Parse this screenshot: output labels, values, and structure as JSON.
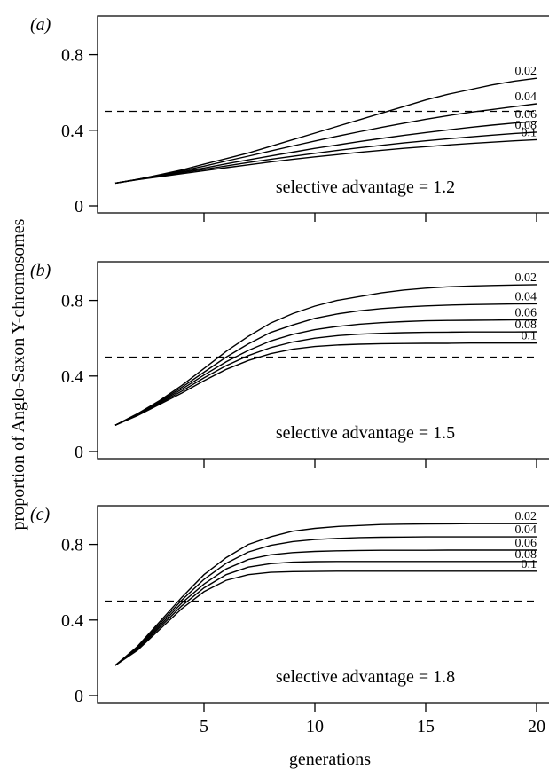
{
  "figure": {
    "ylabel": "proportion of Anglo-Saxon Y-chromosomes",
    "xlabel": "generations"
  },
  "chart_data": [
    {
      "type": "line",
      "panel_label": "(a)",
      "annotation": "selective advantage = 1.2",
      "x": [
        1,
        2,
        3,
        4,
        5,
        6,
        7,
        8,
        9,
        10,
        11,
        12,
        13,
        14,
        15,
        16,
        17,
        18,
        19,
        20
      ],
      "xlim": [
        1,
        20
      ],
      "ylim": [
        0,
        1
      ],
      "x_ticks": [
        5,
        10,
        15,
        20
      ],
      "x_tick_labels": [],
      "y_ticks": [
        0,
        0.4,
        0.8
      ],
      "y_tick_labels": [
        "0",
        "0.4",
        "0.8"
      ],
      "reference_line": {
        "y": 0.5,
        "style": "dashed"
      },
      "series": [
        {
          "name": "0.02",
          "values": [
            0.12,
            0.14,
            0.165,
            0.19,
            0.22,
            0.25,
            0.28,
            0.315,
            0.35,
            0.385,
            0.42,
            0.455,
            0.49,
            0.525,
            0.56,
            0.59,
            0.615,
            0.64,
            0.66,
            0.675
          ]
        },
        {
          "name": "0.04",
          "values": [
            0.12,
            0.14,
            0.162,
            0.185,
            0.21,
            0.237,
            0.263,
            0.29,
            0.317,
            0.343,
            0.368,
            0.392,
            0.415,
            0.437,
            0.458,
            0.477,
            0.495,
            0.51,
            0.525,
            0.54
          ]
        },
        {
          "name": "0.06",
          "values": [
            0.12,
            0.14,
            0.16,
            0.18,
            0.2,
            0.222,
            0.243,
            0.264,
            0.284,
            0.304,
            0.322,
            0.34,
            0.357,
            0.373,
            0.388,
            0.402,
            0.415,
            0.427,
            0.438,
            0.447
          ]
        },
        {
          "name": "0.08",
          "values": [
            0.12,
            0.139,
            0.157,
            0.175,
            0.193,
            0.211,
            0.229,
            0.246,
            0.262,
            0.278,
            0.293,
            0.307,
            0.32,
            0.333,
            0.344,
            0.355,
            0.365,
            0.374,
            0.383,
            0.39
          ]
        },
        {
          "name": "0.1",
          "values": [
            0.12,
            0.138,
            0.154,
            0.17,
            0.186,
            0.202,
            0.217,
            0.232,
            0.246,
            0.259,
            0.271,
            0.283,
            0.294,
            0.304,
            0.313,
            0.322,
            0.33,
            0.337,
            0.344,
            0.35
          ]
        }
      ]
    },
    {
      "type": "line",
      "panel_label": "(b)",
      "annotation": "selective advantage = 1.5",
      "x": [
        1,
        2,
        3,
        4,
        5,
        6,
        7,
        8,
        9,
        10,
        11,
        12,
        13,
        14,
        15,
        16,
        17,
        18,
        19,
        20
      ],
      "xlim": [
        1,
        20
      ],
      "ylim": [
        0,
        1
      ],
      "x_ticks": [
        5,
        10,
        15,
        20
      ],
      "x_tick_labels": [],
      "y_ticks": [
        0,
        0.4,
        0.8
      ],
      "y_tick_labels": [
        "0",
        "0.4",
        "0.8"
      ],
      "reference_line": {
        "y": 0.5,
        "style": "dashed"
      },
      "series": [
        {
          "name": "0.02",
          "values": [
            0.14,
            0.2,
            0.27,
            0.35,
            0.44,
            0.53,
            0.61,
            0.68,
            0.73,
            0.77,
            0.8,
            0.82,
            0.84,
            0.855,
            0.865,
            0.872,
            0.876,
            0.879,
            0.881,
            0.883
          ]
        },
        {
          "name": "0.04",
          "values": [
            0.14,
            0.2,
            0.265,
            0.34,
            0.42,
            0.5,
            0.57,
            0.63,
            0.67,
            0.705,
            0.728,
            0.745,
            0.757,
            0.765,
            0.771,
            0.775,
            0.778,
            0.78,
            0.781,
            0.782
          ]
        },
        {
          "name": "0.06",
          "values": [
            0.14,
            0.195,
            0.26,
            0.33,
            0.405,
            0.475,
            0.535,
            0.585,
            0.62,
            0.645,
            0.662,
            0.674,
            0.682,
            0.688,
            0.692,
            0.694,
            0.695,
            0.696,
            0.697,
            0.697
          ]
        },
        {
          "name": "0.08",
          "values": [
            0.14,
            0.195,
            0.255,
            0.32,
            0.39,
            0.455,
            0.508,
            0.55,
            0.58,
            0.6,
            0.613,
            0.621,
            0.626,
            0.629,
            0.631,
            0.632,
            0.633,
            0.633,
            0.633,
            0.634
          ]
        },
        {
          "name": "0.1",
          "values": [
            0.14,
            0.19,
            0.25,
            0.31,
            0.375,
            0.435,
            0.482,
            0.518,
            0.542,
            0.556,
            0.564,
            0.568,
            0.571,
            0.572,
            0.573,
            0.573,
            0.574,
            0.574,
            0.574,
            0.574
          ]
        }
      ]
    },
    {
      "type": "line",
      "panel_label": "(c)",
      "annotation": "selective advantage = 1.8",
      "x": [
        1,
        2,
        3,
        4,
        5,
        6,
        7,
        8,
        9,
        10,
        11,
        12,
        13,
        14,
        15,
        16,
        17,
        18,
        19,
        20
      ],
      "xlim": [
        1,
        20
      ],
      "ylim": [
        0,
        1
      ],
      "x_ticks": [
        5,
        10,
        15,
        20
      ],
      "x_tick_labels": [
        "5",
        "10",
        "15",
        "20"
      ],
      "y_ticks": [
        0,
        0.4,
        0.8
      ],
      "y_tick_labels": [
        "0",
        "0.4",
        "0.8"
      ],
      "reference_line": {
        "y": 0.5,
        "style": "dashed"
      },
      "series": [
        {
          "name": "0.02",
          "values": [
            0.16,
            0.26,
            0.39,
            0.52,
            0.64,
            0.73,
            0.8,
            0.84,
            0.87,
            0.885,
            0.895,
            0.9,
            0.905,
            0.907,
            0.908,
            0.909,
            0.91,
            0.91,
            0.91,
            0.91
          ]
        },
        {
          "name": "0.04",
          "values": [
            0.16,
            0.255,
            0.38,
            0.505,
            0.615,
            0.7,
            0.76,
            0.795,
            0.815,
            0.826,
            0.832,
            0.836,
            0.838,
            0.839,
            0.84,
            0.84,
            0.84,
            0.84,
            0.84,
            0.84
          ]
        },
        {
          "name": "0.06",
          "values": [
            0.16,
            0.25,
            0.37,
            0.49,
            0.59,
            0.67,
            0.72,
            0.745,
            0.757,
            0.763,
            0.766,
            0.768,
            0.769,
            0.769,
            0.769,
            0.77,
            0.77,
            0.77,
            0.77,
            0.77
          ]
        },
        {
          "name": "0.08",
          "values": [
            0.16,
            0.245,
            0.36,
            0.475,
            0.57,
            0.64,
            0.68,
            0.698,
            0.706,
            0.709,
            0.71,
            0.71,
            0.71,
            0.71,
            0.71,
            0.71,
            0.71,
            0.71,
            0.71,
            0.71
          ]
        },
        {
          "name": "0.1",
          "values": [
            0.16,
            0.24,
            0.35,
            0.46,
            0.55,
            0.61,
            0.64,
            0.652,
            0.656,
            0.657,
            0.658,
            0.658,
            0.658,
            0.658,
            0.658,
            0.658,
            0.658,
            0.658,
            0.658,
            0.658
          ]
        }
      ]
    }
  ]
}
